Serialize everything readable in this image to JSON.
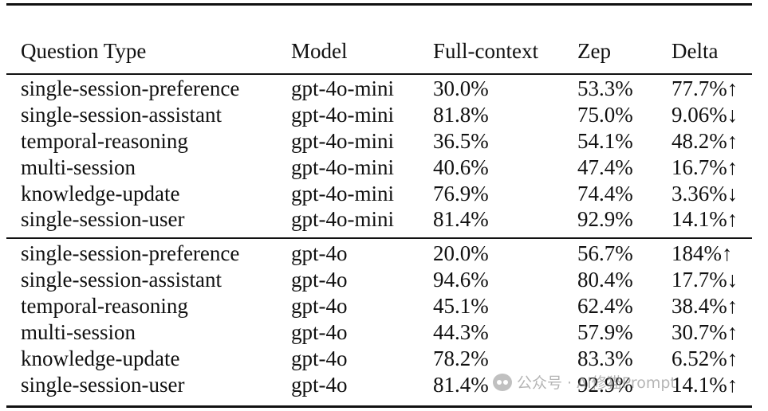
{
  "table": {
    "headers": {
      "question_type": "Question Type",
      "model": "Model",
      "full_context": "Full-context",
      "zep": "Zep",
      "delta": "Delta"
    },
    "group_mini": [
      {
        "question_type": "single-session-preference",
        "model": "gpt-4o-mini",
        "full_context": "30.0%",
        "zep": "53.3%",
        "delta": "77.7%↑"
      },
      {
        "question_type": "single-session-assistant",
        "model": "gpt-4o-mini",
        "full_context": "81.8%",
        "zep": "75.0%",
        "delta": "9.06%↓"
      },
      {
        "question_type": "temporal-reasoning",
        "model": "gpt-4o-mini",
        "full_context": "36.5%",
        "zep": "54.1%",
        "delta": "48.2%↑"
      },
      {
        "question_type": "multi-session",
        "model": "gpt-4o-mini",
        "full_context": "40.6%",
        "zep": "47.4%",
        "delta": "16.7%↑"
      },
      {
        "question_type": "knowledge-update",
        "model": "gpt-4o-mini",
        "full_context": "76.9%",
        "zep": "74.4%",
        "delta": "3.36%↓"
      },
      {
        "question_type": "single-session-user",
        "model": "gpt-4o-mini",
        "full_context": "81.4%",
        "zep": "92.9%",
        "delta": "14.1%↑"
      }
    ],
    "group_4o": [
      {
        "question_type": "single-session-preference",
        "model": "gpt-4o",
        "full_context": "20.0%",
        "zep": "56.7%",
        "delta": "184%↑"
      },
      {
        "question_type": "single-session-assistant",
        "model": "gpt-4o",
        "full_context": "94.6%",
        "zep": "80.4%",
        "delta": "17.7%↓"
      },
      {
        "question_type": "temporal-reasoning",
        "model": "gpt-4o",
        "full_context": "45.1%",
        "zep": "62.4%",
        "delta": "38.4%↑"
      },
      {
        "question_type": "multi-session",
        "model": "gpt-4o",
        "full_context": "44.3%",
        "zep": "57.9%",
        "delta": "30.7%↑"
      },
      {
        "question_type": "knowledge-update",
        "model": "gpt-4o",
        "full_context": "78.2%",
        "zep": "83.3%",
        "delta": "6.52%↑"
      },
      {
        "question_type": "single-session-user",
        "model": "gpt-4o",
        "full_context": "81.4%",
        "zep": "92.9%",
        "delta": "14.1%↑"
      }
    ]
  },
  "watermark": {
    "text": "公众号 · AI修猫Prompt",
    "logo_icon": "wechat-icon"
  }
}
